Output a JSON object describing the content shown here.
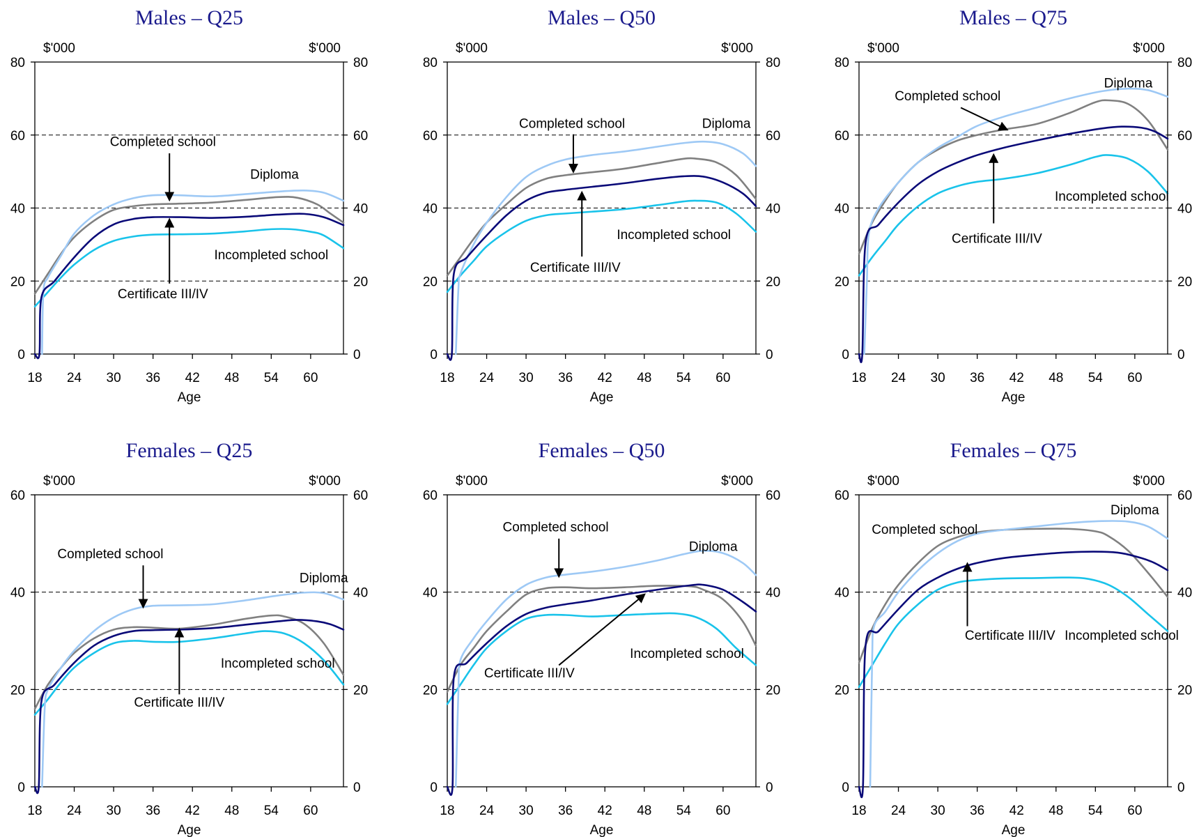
{
  "figure": {
    "unit_label": "$'000",
    "x_label": "Age",
    "x_ticks": [
      18,
      24,
      30,
      36,
      42,
      48,
      54,
      60
    ],
    "xlim": [
      18,
      65
    ]
  },
  "colors": {
    "Diploma": "#9ec9f5",
    "Completed school": "#808080",
    "Certificate III/IV": "#0a0a78",
    "Incompleted school": "#19c3ea",
    "title": "#1a1a8c"
  },
  "chart_data": [
    {
      "type": "line",
      "title": "Males – Q25",
      "ylim": [
        0,
        80
      ],
      "yticks": [
        0,
        20,
        40,
        60,
        80
      ],
      "xlabel": "Age",
      "ylabel": "$'000",
      "grid": true,
      "series": [
        {
          "name": "Diploma",
          "x": [
            19.1,
            19.3,
            20,
            22,
            24,
            27,
            30,
            33,
            36,
            40,
            45,
            50,
            55,
            59,
            62,
            65
          ],
          "y": [
            0,
            17,
            21,
            27,
            33,
            38,
            41,
            42.7,
            43.5,
            43.5,
            43.2,
            43.8,
            44.5,
            44.8,
            44.2,
            42
          ]
        },
        {
          "name": "Completed school",
          "x": [
            18,
            20,
            22,
            24,
            27,
            30,
            33,
            36,
            40,
            45,
            50,
            55,
            58,
            61,
            63,
            65
          ],
          "y": [
            16.5,
            22,
            27.5,
            32,
            36.5,
            39.5,
            40.5,
            41,
            41.2,
            41.5,
            42.2,
            43,
            42.8,
            41,
            38.5,
            36
          ]
        },
        {
          "name": "Certificate III/IV",
          "x": [
            18,
            18.7,
            19,
            21,
            24,
            27,
            30,
            33,
            36,
            40,
            45,
            50,
            55,
            59,
            62,
            65
          ],
          "y": [
            0,
            0,
            15.5,
            20,
            26.5,
            32,
            35.5,
            37,
            37.5,
            37.5,
            37.3,
            37.6,
            38.2,
            38.4,
            37.5,
            35.3
          ]
        },
        {
          "name": "Incompleted school",
          "x": [
            18,
            20,
            22,
            24,
            27,
            30,
            33,
            36,
            40,
            45,
            50,
            54,
            57,
            60,
            62,
            65
          ],
          "y": [
            13,
            17,
            21,
            24.5,
            28.5,
            31,
            32.2,
            32.7,
            32.8,
            33,
            33.6,
            34.2,
            34.2,
            33.5,
            32.5,
            29
          ]
        }
      ],
      "annotations": [
        "Completed school",
        "Diploma",
        "Incompleted school",
        "Certificate III/IV"
      ]
    },
    {
      "type": "line",
      "title": "Males – Q50",
      "ylim": [
        0,
        80
      ],
      "yticks": [
        0,
        20,
        40,
        60,
        80
      ],
      "xlabel": "Age",
      "ylabel": "$'000",
      "grid": true,
      "series": [
        {
          "name": "Diploma",
          "x": [
            19.3,
            19.7,
            20,
            22,
            24,
            27,
            30,
            33,
            36,
            40,
            45,
            50,
            54,
            57,
            60,
            63,
            65
          ],
          "y": [
            0,
            18,
            22,
            30,
            36,
            43,
            48.5,
            51.5,
            53.3,
            54.5,
            55.5,
            56.8,
            57.8,
            58.2,
            57.5,
            55,
            51.5
          ]
        },
        {
          "name": "Completed school",
          "x": [
            18,
            20,
            22,
            24,
            27,
            30,
            33,
            36,
            40,
            45,
            50,
            54,
            56,
            59,
            62,
            65
          ],
          "y": [
            21.5,
            26.5,
            31.5,
            36,
            41,
            45.5,
            48,
            49,
            49.8,
            50.8,
            52.3,
            53.5,
            53.5,
            52.5,
            49,
            42.5
          ]
        },
        {
          "name": "Certificate III/IV",
          "x": [
            18,
            18.7,
            19,
            21,
            24,
            27,
            30,
            33,
            36,
            40,
            45,
            50,
            54,
            57,
            60,
            63,
            65
          ],
          "y": [
            0,
            0,
            22,
            26.5,
            32.5,
            38,
            42,
            44.2,
            45,
            45.8,
            46.8,
            48,
            48.7,
            48.6,
            47,
            44,
            40.5
          ]
        },
        {
          "name": "Incompleted school",
          "x": [
            18,
            20,
            22,
            24,
            27,
            30,
            33,
            36,
            40,
            45,
            50,
            54,
            56,
            59,
            62,
            65
          ],
          "y": [
            17,
            21.5,
            25.5,
            29.5,
            33.5,
            36.5,
            38,
            38.5,
            39,
            39.7,
            40.8,
            41.8,
            42,
            41.5,
            38.5,
            33.5
          ]
        }
      ],
      "annotations": [
        "Completed school",
        "Diploma",
        "Incompleted school",
        "Certificate III/IV"
      ]
    },
    {
      "type": "line",
      "title": "Males – Q75",
      "ylim": [
        0,
        80
      ],
      "yticks": [
        0,
        20,
        40,
        60,
        80
      ],
      "xlabel": "Age",
      "ylabel": "$'000",
      "grid": true,
      "series": [
        {
          "name": "Diploma",
          "x": [
            18.8,
            19.2,
            19.5,
            21,
            24,
            27,
            30,
            33,
            36,
            40,
            45,
            50,
            55,
            59,
            62,
            65
          ],
          "y": [
            0,
            20,
            33,
            40,
            47,
            52.5,
            56.5,
            59.5,
            62.5,
            65,
            67.5,
            70,
            72,
            72.7,
            72.3,
            70.5
          ]
        },
        {
          "name": "Completed school",
          "x": [
            18,
            20,
            22,
            24,
            27,
            30,
            33,
            36,
            40,
            45,
            50,
            54,
            56,
            59,
            62,
            65
          ],
          "y": [
            27.5,
            36,
            42,
            47,
            52.5,
            56,
            58.5,
            60,
            61.5,
            63,
            66,
            69,
            69.5,
            68.5,
            64,
            56
          ]
        },
        {
          "name": "Certificate III/IV",
          "x": [
            18,
            18.5,
            19,
            21,
            24,
            27,
            30,
            33,
            36,
            40,
            45,
            50,
            55,
            58,
            61,
            63,
            65
          ],
          "y": [
            0,
            0,
            30.5,
            35.5,
            41.5,
            46.5,
            50,
            52.5,
            54.5,
            56.5,
            58.5,
            60.3,
            61.8,
            62.3,
            62,
            61,
            59
          ]
        },
        {
          "name": "Incompleted school",
          "x": [
            18,
            20,
            22,
            24,
            27,
            30,
            33,
            36,
            40,
            45,
            50,
            54,
            56,
            59,
            62,
            65
          ],
          "y": [
            21.5,
            26.5,
            31,
            35.5,
            40.5,
            44,
            46,
            47.2,
            48,
            49.5,
            51.8,
            54,
            54.5,
            53.5,
            50,
            44
          ]
        }
      ],
      "annotations": [
        "Completed school",
        "Diploma",
        "Incompleted school",
        "Certificate III/IV"
      ]
    },
    {
      "type": "line",
      "title": "Females – Q25",
      "ylim": [
        0,
        60
      ],
      "yticks": [
        0,
        20,
        40,
        60
      ],
      "xlabel": "Age",
      "ylabel": "$'000",
      "grid": true,
      "series": [
        {
          "name": "Diploma",
          "x": [
            19.1,
            19.5,
            20,
            22,
            24,
            27,
            30,
            33,
            36,
            40,
            45,
            50,
            55,
            59,
            62,
            65
          ],
          "y": [
            0,
            16,
            20,
            24.5,
            28,
            32,
            34.8,
            36.5,
            37.2,
            37.3,
            37.5,
            38.3,
            39.3,
            39.9,
            39.8,
            38.5
          ]
        },
        {
          "name": "Completed school",
          "x": [
            18,
            20,
            22,
            24,
            27,
            30,
            33,
            36,
            40,
            45,
            50,
            54,
            56,
            59,
            62,
            65
          ],
          "y": [
            16,
            21,
            24.5,
            27.5,
            30.5,
            32.3,
            32.8,
            32.7,
            32.5,
            33.3,
            34.5,
            35.2,
            35,
            33.5,
            29.5,
            23
          ]
        },
        {
          "name": "Certificate III/IV",
          "x": [
            18,
            18.6,
            19,
            21,
            24,
            27,
            30,
            33,
            36,
            40,
            45,
            50,
            55,
            58,
            61,
            63,
            65
          ],
          "y": [
            0,
            0,
            17.5,
            21,
            25.5,
            29,
            31,
            32,
            32.2,
            32.3,
            32.6,
            33.3,
            34,
            34.3,
            34,
            33.4,
            32.3
          ]
        },
        {
          "name": "Incompleted school",
          "x": [
            18,
            20,
            22,
            24,
            27,
            30,
            33,
            36,
            40,
            45,
            50,
            53,
            56,
            59,
            62,
            65
          ],
          "y": [
            14.8,
            18,
            21.5,
            24.5,
            27.5,
            29.5,
            30,
            29.8,
            29.8,
            30.5,
            31.5,
            32,
            31.5,
            29.5,
            26,
            21
          ]
        }
      ],
      "annotations": [
        "Completed school",
        "Diploma",
        "Incompleted school",
        "Certificate III/IV"
      ]
    },
    {
      "type": "line",
      "title": "Females – Q50",
      "ylim": [
        0,
        60
      ],
      "yticks": [
        0,
        20,
        40,
        60
      ],
      "xlabel": "Age",
      "ylabel": "$'000",
      "grid": true,
      "series": [
        {
          "name": "Diploma",
          "x": [
            19.3,
            19.7,
            20,
            22,
            24,
            27,
            30,
            33,
            36,
            40,
            45,
            50,
            54,
            57,
            60,
            63,
            65
          ],
          "y": [
            0,
            20,
            26,
            30.5,
            34,
            38.5,
            41.5,
            43,
            43.6,
            44.2,
            45.2,
            46.5,
            47.8,
            48.5,
            48,
            46,
            43.5
          ]
        },
        {
          "name": "Completed school",
          "x": [
            18,
            20,
            22,
            24,
            27,
            30,
            33,
            36,
            40,
            45,
            50,
            55,
            57,
            60,
            63,
            65
          ],
          "y": [
            19.5,
            25,
            28.5,
            32,
            36,
            39.5,
            40.8,
            41,
            40.8,
            41,
            41.3,
            41.2,
            40.5,
            38.5,
            34,
            29
          ]
        },
        {
          "name": "Certificate III/IV",
          "x": [
            18,
            18.8,
            19,
            21,
            24,
            27,
            30,
            33,
            36,
            40,
            45,
            50,
            55,
            57,
            60,
            63,
            65
          ],
          "y": [
            0,
            0,
            22.5,
            25.5,
            29.5,
            33,
            35.5,
            36.8,
            37.5,
            38.3,
            39.5,
            40.5,
            41.4,
            41.5,
            40.5,
            38,
            36
          ]
        },
        {
          "name": "Incompleted school",
          "x": [
            18,
            20,
            22,
            24,
            27,
            30,
            33,
            36,
            40,
            45,
            50,
            53,
            56,
            59,
            62,
            65
          ],
          "y": [
            17,
            21,
            25,
            28.5,
            32,
            34.5,
            35.3,
            35.3,
            35,
            35.3,
            35.6,
            35.6,
            34.8,
            32.5,
            28.5,
            25
          ]
        }
      ],
      "annotations": [
        "Completed school",
        "Diploma",
        "Incompleted school",
        "Certificate III/IV"
      ]
    },
    {
      "type": "line",
      "title": "Females – Q75",
      "ylim": [
        0,
        60
      ],
      "yticks": [
        0,
        20,
        40,
        60
      ],
      "xlabel": "Age",
      "ylabel": "$'000",
      "grid": true,
      "series": [
        {
          "name": "Diploma",
          "x": [
            19.7,
            20,
            20.3,
            22,
            24,
            27,
            30,
            33,
            36,
            40,
            45,
            50,
            55,
            59,
            62,
            65
          ],
          "y": [
            0,
            26,
            33,
            36,
            40,
            44.5,
            48,
            50.5,
            52,
            52.8,
            53.5,
            54.2,
            54.6,
            54.5,
            53.5,
            51
          ]
        },
        {
          "name": "Completed school",
          "x": [
            18,
            20,
            22,
            24,
            27,
            30,
            33,
            36,
            40,
            45,
            50,
            54,
            56,
            59,
            62,
            65
          ],
          "y": [
            25.5,
            32.5,
            37.5,
            41.5,
            46,
            49.5,
            51.3,
            52.3,
            52.8,
            53,
            53,
            52.5,
            51.5,
            48.5,
            44,
            39
          ]
        },
        {
          "name": "Certificate III/IV",
          "x": [
            18,
            18.6,
            19,
            21,
            24,
            27,
            30,
            33,
            36,
            40,
            45,
            50,
            55,
            58,
            61,
            63,
            65
          ],
          "y": [
            0,
            0,
            29,
            32,
            36.5,
            40.5,
            43,
            44.8,
            46,
            47,
            47.7,
            48.2,
            48.3,
            48,
            47,
            46,
            44.5
          ]
        },
        {
          "name": "Incompleted school",
          "x": [
            18,
            20,
            22,
            24,
            27,
            30,
            33,
            36,
            40,
            45,
            50,
            53,
            56,
            59,
            62,
            65
          ],
          "y": [
            20.5,
            25,
            29.5,
            33.5,
            37.5,
            40.5,
            42,
            42.5,
            42.8,
            42.9,
            43,
            42.7,
            41.5,
            39,
            35.5,
            32
          ]
        }
      ],
      "annotations": [
        "Completed school",
        "Diploma",
        "Certificate III/IV",
        "Incompleted school"
      ]
    }
  ]
}
